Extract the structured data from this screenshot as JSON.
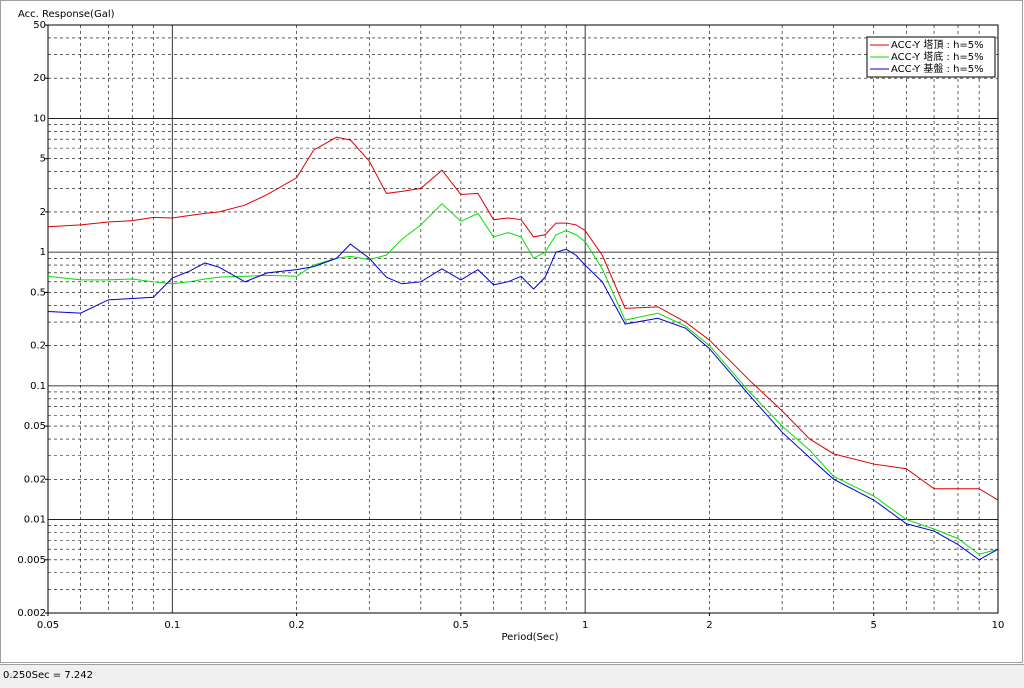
{
  "window": {
    "status": "0.250Sec = 7.242"
  },
  "chart_data": {
    "type": "line",
    "title": "Acc. Response(Gal)",
    "x_label": "Period(Sec)",
    "xscale": "log",
    "yscale": "log",
    "grid": true,
    "legend": "upper right",
    "xlim": [
      0.05,
      10
    ],
    "ylim": [
      0.002,
      50
    ],
    "xticks": [
      0.05,
      0.1,
      0.2,
      0.5,
      1,
      2,
      5,
      10
    ],
    "yticks": [
      0.002,
      0.005,
      0.01,
      0.02,
      0.05,
      0.1,
      0.2,
      0.5,
      1,
      2,
      5,
      10,
      20,
      50
    ],
    "x": [
      0.05,
      0.06,
      0.07,
      0.08,
      0.09,
      0.1,
      0.11,
      0.12,
      0.13,
      0.15,
      0.17,
      0.2,
      0.22,
      0.25,
      0.27,
      0.3,
      0.33,
      0.36,
      0.4,
      0.45,
      0.5,
      0.55,
      0.6,
      0.65,
      0.7,
      0.75,
      0.8,
      0.85,
      0.9,
      0.95,
      1.0,
      1.1,
      1.25,
      1.5,
      1.75,
      2,
      2.5,
      3,
      3.5,
      4,
      5,
      6,
      7,
      8,
      9,
      10
    ],
    "series": [
      {
        "name": "ACC-Y 塔頂 : h=5%",
        "color": "#e00000",
        "values": [
          1.55,
          1.6,
          1.68,
          1.72,
          1.82,
          1.8,
          1.88,
          1.95,
          2.0,
          2.25,
          2.7,
          3.6,
          5.8,
          7.242,
          6.9,
          4.8,
          2.75,
          2.85,
          3.0,
          4.1,
          2.7,
          2.75,
          1.75,
          1.8,
          1.75,
          1.3,
          1.35,
          1.65,
          1.65,
          1.6,
          1.45,
          0.95,
          0.38,
          0.39,
          0.3,
          0.22,
          0.11,
          0.065,
          0.04,
          0.031,
          0.026,
          0.024,
          0.017,
          0.017,
          0.017,
          0.014
        ]
      },
      {
        "name": "ACC-Y 塔底 : h=5%",
        "color": "#00e000",
        "values": [
          0.66,
          0.62,
          0.62,
          0.63,
          0.6,
          0.58,
          0.6,
          0.63,
          0.65,
          0.66,
          0.67,
          0.66,
          0.8,
          0.9,
          0.93,
          0.88,
          0.95,
          1.25,
          1.6,
          2.3,
          1.7,
          1.95,
          1.3,
          1.4,
          1.3,
          0.9,
          1.0,
          1.35,
          1.45,
          1.35,
          1.2,
          0.75,
          0.31,
          0.35,
          0.28,
          0.2,
          0.09,
          0.05,
          0.033,
          0.021,
          0.015,
          0.01,
          0.0085,
          0.0072,
          0.0055,
          0.006
        ]
      },
      {
        "name": "ACC-Y 基盤 : h=5%",
        "color": "#0000d0",
        "values": [
          0.36,
          0.35,
          0.44,
          0.45,
          0.46,
          0.64,
          0.72,
          0.83,
          0.77,
          0.6,
          0.7,
          0.74,
          0.78,
          0.9,
          1.15,
          0.9,
          0.65,
          0.58,
          0.6,
          0.75,
          0.62,
          0.74,
          0.57,
          0.6,
          0.66,
          0.53,
          0.65,
          1.0,
          1.05,
          0.95,
          0.8,
          0.6,
          0.29,
          0.32,
          0.27,
          0.19,
          0.085,
          0.045,
          0.029,
          0.02,
          0.014,
          0.0093,
          0.0082,
          0.0065,
          0.005,
          0.006
        ]
      }
    ]
  }
}
